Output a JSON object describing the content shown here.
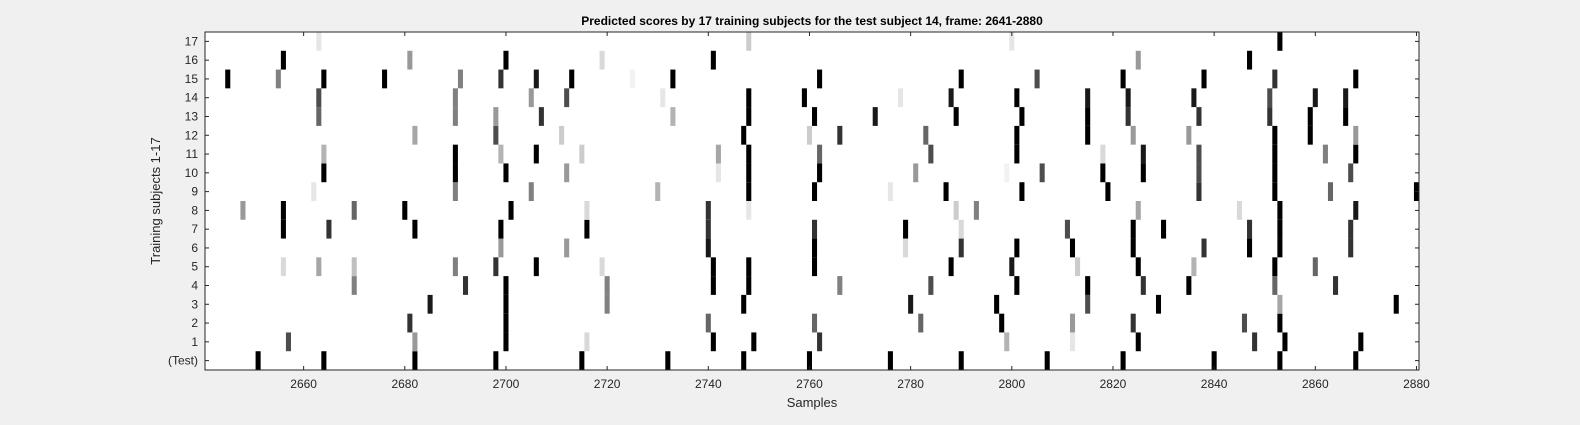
{
  "chart_data": {
    "type": "heatmap",
    "title": "Predicted scores by 17 training subjects for the test subject 14, frame: 2641-2880",
    "xlabel": "Samples",
    "ylabel": "Training subjects 1-17",
    "xlim": [
      2641,
      2880
    ],
    "x_ticks": [
      2660,
      2680,
      2700,
      2720,
      2740,
      2760,
      2780,
      2800,
      2820,
      2840,
      2860,
      2880
    ],
    "rows": [
      "(Test)",
      "1",
      "2",
      "3",
      "4",
      "5",
      "6",
      "7",
      "8",
      "9",
      "10",
      "11",
      "12",
      "13",
      "14",
      "15",
      "16",
      "17"
    ],
    "colormap": "white-to-black",
    "value_range": [
      0,
      1
    ],
    "marks": [
      {
        "row": "(Test)",
        "values": [
          [
            2651,
            1
          ],
          [
            2664,
            1
          ],
          [
            2682,
            1
          ],
          [
            2698,
            1
          ],
          [
            2715,
            1
          ],
          [
            2732,
            1
          ],
          [
            2747,
            1
          ],
          [
            2760,
            1
          ],
          [
            2776,
            1
          ],
          [
            2790,
            1
          ],
          [
            2807,
            1
          ],
          [
            2822,
            1
          ],
          [
            2840,
            1
          ],
          [
            2853,
            1
          ],
          [
            2868,
            1
          ]
        ]
      },
      {
        "row": "1",
        "values": [
          [
            2657,
            0.7
          ],
          [
            2682,
            0.4
          ],
          [
            2700,
            1
          ],
          [
            2716,
            0.15
          ],
          [
            2741,
            1
          ],
          [
            2749,
            1
          ],
          [
            2762,
            0.8
          ],
          [
            2799,
            0.3
          ],
          [
            2812,
            0.1
          ],
          [
            2825,
            1
          ],
          [
            2848,
            0.8
          ],
          [
            2854,
            1
          ],
          [
            2869,
            1
          ]
        ]
      },
      {
        "row": "2",
        "values": [
          [
            2681,
            0.8
          ],
          [
            2700,
            1
          ],
          [
            2740,
            0.6
          ],
          [
            2761,
            0.6
          ],
          [
            2782,
            0.6
          ],
          [
            2798,
            1
          ],
          [
            2812,
            0.4
          ],
          [
            2824,
            0.8
          ],
          [
            2846,
            0.7
          ],
          [
            2853,
            1
          ]
        ]
      },
      {
        "row": "3",
        "values": [
          [
            2685,
            0.9
          ],
          [
            2700,
            1
          ],
          [
            2720,
            0.5
          ],
          [
            2747,
            1
          ],
          [
            2780,
            0.9
          ],
          [
            2797,
            1
          ],
          [
            2815,
            0.7
          ],
          [
            2829,
            1
          ],
          [
            2853,
            0.35
          ],
          [
            2876,
            1
          ]
        ]
      },
      {
        "row": "4",
        "values": [
          [
            2670,
            0.5
          ],
          [
            2692,
            0.8
          ],
          [
            2700,
            1
          ],
          [
            2720,
            0.5
          ],
          [
            2741,
            1
          ],
          [
            2748,
            1
          ],
          [
            2766,
            0.5
          ],
          [
            2784,
            0.7
          ],
          [
            2801,
            1
          ],
          [
            2815,
            1
          ],
          [
            2826,
            0.8
          ],
          [
            2835,
            1
          ],
          [
            2852,
            0.6
          ],
          [
            2864,
            0.8
          ]
        ]
      },
      {
        "row": "5",
        "values": [
          [
            2656,
            0.15
          ],
          [
            2663,
            0.35
          ],
          [
            2670,
            0.25
          ],
          [
            2690,
            0.5
          ],
          [
            2698,
            0.8
          ],
          [
            2706,
            1
          ],
          [
            2719,
            0.15
          ],
          [
            2741,
            1
          ],
          [
            2748,
            1
          ],
          [
            2761,
            1
          ],
          [
            2788,
            1
          ],
          [
            2800,
            0.9
          ],
          [
            2813,
            0.2
          ],
          [
            2825,
            1
          ],
          [
            2836,
            0.3
          ],
          [
            2852,
            1
          ],
          [
            2860,
            0.6
          ]
        ]
      },
      {
        "row": "6",
        "values": [
          [
            2699,
            0.4
          ],
          [
            2712,
            0.4
          ],
          [
            2740,
            0.9
          ],
          [
            2761,
            1
          ],
          [
            2779,
            0.15
          ],
          [
            2790,
            0.8
          ],
          [
            2801,
            1
          ],
          [
            2812,
            1
          ],
          [
            2824,
            1
          ],
          [
            2838,
            0.8
          ],
          [
            2847,
            1
          ],
          [
            2853,
            1
          ],
          [
            2867,
            0.8
          ]
        ]
      },
      {
        "row": "7",
        "values": [
          [
            2656,
            1
          ],
          [
            2665,
            0.8
          ],
          [
            2682,
            1
          ],
          [
            2699,
            1
          ],
          [
            2716,
            1
          ],
          [
            2740,
            0.8
          ],
          [
            2761,
            0.8
          ],
          [
            2779,
            1
          ],
          [
            2790,
            0.15
          ],
          [
            2811,
            0.7
          ],
          [
            2824,
            1
          ],
          [
            2830,
            1
          ],
          [
            2847,
            0.8
          ],
          [
            2853,
            1
          ],
          [
            2867,
            0.8
          ]
        ]
      },
      {
        "row": "8",
        "values": [
          [
            2648,
            0.4
          ],
          [
            2656,
            1
          ],
          [
            2670,
            0.6
          ],
          [
            2680,
            1
          ],
          [
            2701,
            1
          ],
          [
            2716,
            0.15
          ],
          [
            2740,
            0.8
          ],
          [
            2748,
            0.1
          ],
          [
            2789,
            0.2
          ],
          [
            2793,
            0.5
          ],
          [
            2825,
            0.35
          ],
          [
            2845,
            0.15
          ],
          [
            2853,
            1
          ],
          [
            2868,
            0.9
          ]
        ]
      },
      {
        "row": "9",
        "values": [
          [
            2662,
            0.1
          ],
          [
            2690,
            0.5
          ],
          [
            2705,
            0.5
          ],
          [
            2730,
            0.3
          ],
          [
            2748,
            1
          ],
          [
            2761,
            1
          ],
          [
            2776,
            0.1
          ],
          [
            2787,
            1
          ],
          [
            2802,
            1
          ],
          [
            2819,
            1
          ],
          [
            2837,
            0.8
          ],
          [
            2852,
            1
          ],
          [
            2863,
            0.6
          ],
          [
            2880,
            1
          ]
        ]
      },
      {
        "row": "10",
        "values": [
          [
            2664,
            1
          ],
          [
            2690,
            1
          ],
          [
            2700,
            1
          ],
          [
            2712,
            0.4
          ],
          [
            2742,
            0.1
          ],
          [
            2748,
            1
          ],
          [
            2762,
            1
          ],
          [
            2781,
            0.4
          ],
          [
            2799,
            0.05
          ],
          [
            2806,
            0.7
          ],
          [
            2818,
            1
          ],
          [
            2826,
            1
          ],
          [
            2837,
            0.7
          ],
          [
            2852,
            1
          ],
          [
            2867,
            0.7
          ]
        ]
      },
      {
        "row": "11",
        "values": [
          [
            2664,
            0.3
          ],
          [
            2690,
            1
          ],
          [
            2699,
            0.3
          ],
          [
            2706,
            1
          ],
          [
            2715,
            0.2
          ],
          [
            2742,
            0.35
          ],
          [
            2748,
            1
          ],
          [
            2762,
            0.6
          ],
          [
            2784,
            0.7
          ],
          [
            2801,
            1
          ],
          [
            2818,
            0.15
          ],
          [
            2826,
            0.9
          ],
          [
            2837,
            0.7
          ],
          [
            2852,
            1
          ],
          [
            2862,
            0.5
          ],
          [
            2868,
            1
          ]
        ]
      },
      {
        "row": "12",
        "values": [
          [
            2682,
            0.35
          ],
          [
            2698,
            0.7
          ],
          [
            2711,
            0.2
          ],
          [
            2747,
            1
          ],
          [
            2760,
            0.2
          ],
          [
            2766,
            0.8
          ],
          [
            2783,
            0.6
          ],
          [
            2801,
            1
          ],
          [
            2815,
            1
          ],
          [
            2824,
            0.4
          ],
          [
            2835,
            0.4
          ],
          [
            2852,
            1
          ],
          [
            2859,
            1
          ],
          [
            2868,
            0.4
          ]
        ]
      },
      {
        "row": "13",
        "values": [
          [
            2663,
            0.6
          ],
          [
            2690,
            0.5
          ],
          [
            2698,
            0.4
          ],
          [
            2707,
            0.8
          ],
          [
            2733,
            0.3
          ],
          [
            2748,
            1
          ],
          [
            2761,
            1
          ],
          [
            2773,
            0.9
          ],
          [
            2789,
            1
          ],
          [
            2802,
            1
          ],
          [
            2815,
            1
          ],
          [
            2823,
            0.8
          ],
          [
            2837,
            0.8
          ],
          [
            2851,
            0.8
          ],
          [
            2859,
            1
          ],
          [
            2866,
            1
          ]
        ]
      },
      {
        "row": "14",
        "values": [
          [
            2663,
            0.7
          ],
          [
            2690,
            0.5
          ],
          [
            2705,
            0.4
          ],
          [
            2712,
            0.7
          ],
          [
            2731,
            0.1
          ],
          [
            2748,
            1
          ],
          [
            2759,
            1
          ],
          [
            2778,
            0.1
          ],
          [
            2788,
            0.9
          ],
          [
            2801,
            1
          ],
          [
            2815,
            0.9
          ],
          [
            2823,
            0.9
          ],
          [
            2836,
            0.9
          ],
          [
            2851,
            0.7
          ],
          [
            2860,
            0.9
          ],
          [
            2866,
            0.9
          ]
        ]
      },
      {
        "row": "15",
        "values": [
          [
            2645,
            1
          ],
          [
            2655,
            0.5
          ],
          [
            2664,
            1
          ],
          [
            2676,
            1
          ],
          [
            2691,
            0.5
          ],
          [
            2699,
            0.8
          ],
          [
            2706,
            0.9
          ],
          [
            2713,
            1
          ],
          [
            2725,
            0.05
          ],
          [
            2733,
            1
          ],
          [
            2762,
            1
          ],
          [
            2790,
            1
          ],
          [
            2805,
            0.7
          ],
          [
            2822,
            1
          ],
          [
            2838,
            1
          ],
          [
            2852,
            0.8
          ],
          [
            2868,
            1
          ]
        ]
      },
      {
        "row": "16",
        "values": [
          [
            2656,
            1
          ],
          [
            2681,
            0.4
          ],
          [
            2700,
            1
          ],
          [
            2719,
            0.15
          ],
          [
            2741,
            1
          ],
          [
            2825,
            0.4
          ],
          [
            2847,
            1
          ]
        ]
      },
      {
        "row": "17",
        "values": [
          [
            2663,
            0.1
          ],
          [
            2748,
            0.2
          ],
          [
            2800,
            0.1
          ],
          [
            2853,
            1
          ]
        ]
      }
    ]
  }
}
